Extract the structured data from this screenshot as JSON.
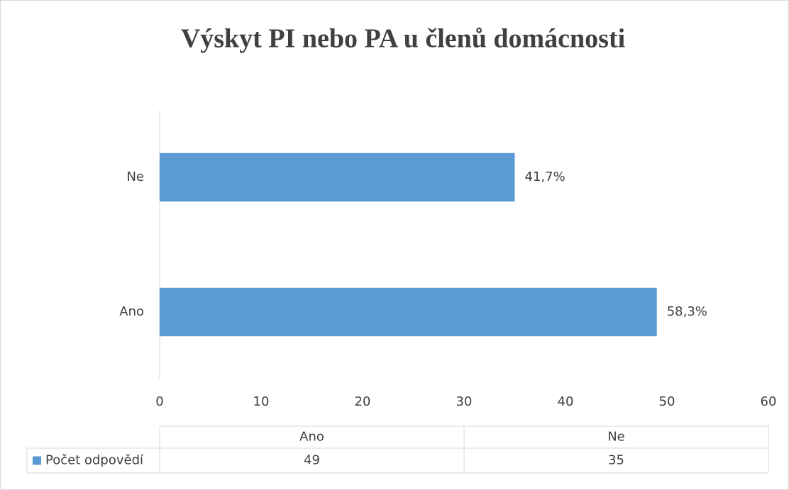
{
  "chart_data": {
    "type": "bar",
    "orientation": "horizontal",
    "title": "Výskyt PI nebo PA u členů domácnosti",
    "categories": [
      "Ano",
      "Ne"
    ],
    "series": [
      {
        "name": "Počet odpovědí",
        "color": "#5b9bd5",
        "values": [
          49,
          35
        ]
      }
    ],
    "data_labels": [
      "58,3%",
      "41,7%"
    ],
    "xlim": [
      0,
      60
    ],
    "xticks": [
      0,
      10,
      20,
      30,
      40,
      50,
      60
    ],
    "grid": false,
    "data_table": true
  }
}
